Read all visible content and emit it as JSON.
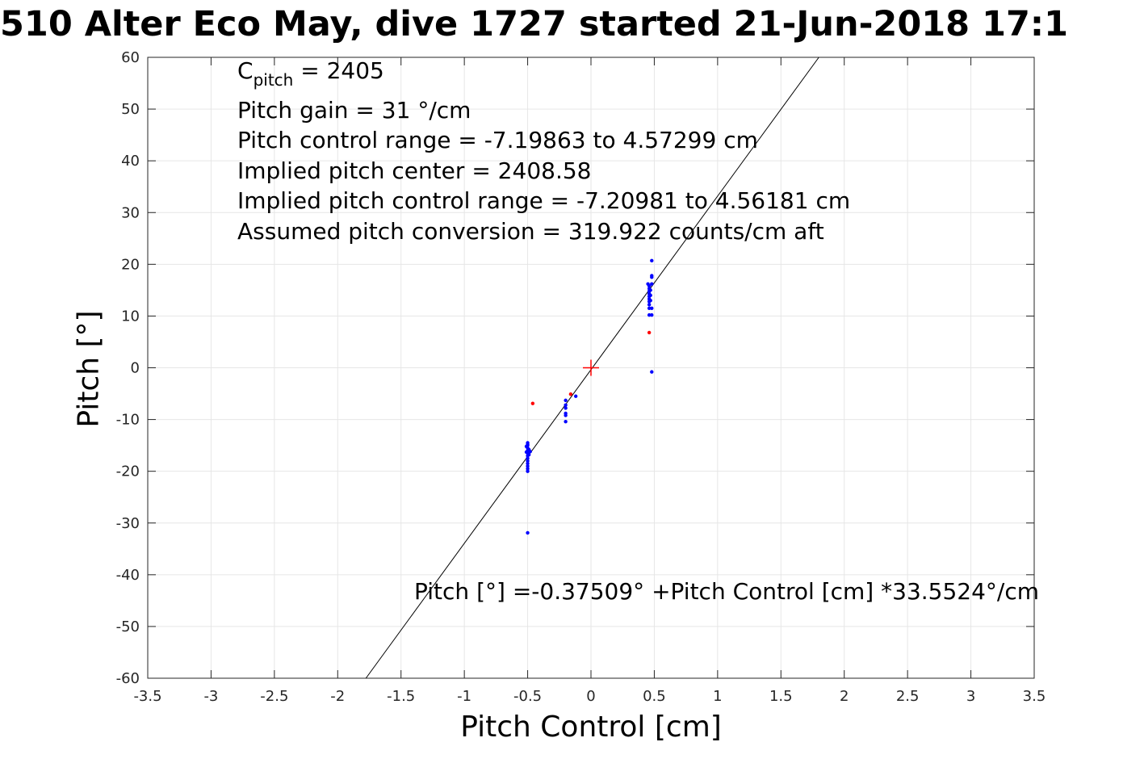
{
  "chart_data": {
    "type": "scatter",
    "title": "510 Alter Eco May, dive 1727 started 21-Jun-2018 17:1",
    "xlabel": "Pitch Control [cm]",
    "ylabel": "Pitch [°]",
    "xlim": [
      -3.5,
      3.5
    ],
    "ylim": [
      -60,
      60
    ],
    "x_ticks": [
      -3.5,
      -3,
      -2.5,
      -2,
      -1.5,
      -1,
      -0.5,
      0,
      0.5,
      1,
      1.5,
      2,
      2.5,
      3,
      3.5
    ],
    "x_tick_labels": [
      "-3.5",
      "-3",
      "-2.5",
      "-2",
      "-1.5",
      "-1",
      "-0.5",
      "0",
      "0.5",
      "1",
      "1.5",
      "2",
      "2.5",
      "3",
      "3.5"
    ],
    "y_ticks": [
      -60,
      -50,
      -40,
      -30,
      -20,
      -10,
      0,
      10,
      20,
      30,
      40,
      50,
      60
    ],
    "y_tick_labels": [
      "-60",
      "-50",
      "-40",
      "-30",
      "-20",
      "-10",
      "0",
      "10",
      "20",
      "30",
      "40",
      "50",
      "60"
    ],
    "grid": true,
    "annotations": {
      "cpitch_prefix": "C",
      "cpitch_sub": "pitch",
      "cpitch_rest": " = 2405",
      "line2": "Pitch gain = 31 °/cm",
      "line3": "Pitch control range = -7.19863 to 4.57299 cm",
      "line4": "Implied pitch center = 2408.58",
      "line5": "Implied pitch control range = -7.20981 to 4.56181 cm",
      "line6": "Assumed pitch conversion = 319.922 counts/cm aft",
      "equation": "Pitch [°] =-0.37509° +Pitch Control [cm] *33.5524°/cm"
    },
    "fit_line": {
      "intercept": -0.37509,
      "slope": 33.5524,
      "color": "#000000"
    },
    "center_marker": {
      "x": 0,
      "y": 0,
      "color": "#ff0000"
    },
    "series": [
      {
        "color": "#0000ff",
        "points": [
          [
            -0.5,
            -14.5
          ],
          [
            -0.5,
            -15
          ],
          [
            -0.5,
            -15.5
          ],
          [
            -0.5,
            -16
          ],
          [
            -0.5,
            -16.5
          ],
          [
            -0.5,
            -17
          ],
          [
            -0.5,
            -17.5
          ],
          [
            -0.5,
            -18
          ],
          [
            -0.5,
            -18.5
          ],
          [
            -0.5,
            -19
          ],
          [
            -0.5,
            -19.5
          ],
          [
            -0.5,
            -20
          ],
          [
            -0.51,
            -15.2
          ],
          [
            -0.51,
            -16.3
          ],
          [
            -0.49,
            -16.8
          ],
          [
            -0.49,
            -15.8
          ],
          [
            -0.5,
            -14.8
          ],
          [
            -0.48,
            -16.2
          ],
          [
            -0.5,
            -31.9
          ],
          [
            -0.2,
            -6.3
          ],
          [
            -0.2,
            -7.2
          ],
          [
            -0.2,
            -7.8
          ],
          [
            -0.2,
            -8.8
          ],
          [
            -0.2,
            -9.2
          ],
          [
            -0.2,
            -10.4
          ],
          [
            -0.12,
            -5.5
          ],
          [
            0.46,
            10.2
          ],
          [
            0.46,
            11.5
          ],
          [
            0.46,
            12.2
          ],
          [
            0.46,
            12.8
          ],
          [
            0.46,
            13.3
          ],
          [
            0.46,
            13.8
          ],
          [
            0.46,
            14.3
          ],
          [
            0.46,
            14.8
          ],
          [
            0.46,
            15.3
          ],
          [
            0.46,
            15.8
          ],
          [
            0.45,
            16.2
          ],
          [
            0.47,
            14.0
          ],
          [
            0.47,
            13.0
          ],
          [
            0.47,
            15.0
          ],
          [
            0.48,
            16.2
          ],
          [
            0.48,
            17.5
          ],
          [
            0.48,
            17.8
          ],
          [
            0.48,
            11.5
          ],
          [
            0.48,
            10.2
          ],
          [
            0.48,
            20.7
          ],
          [
            0.48,
            -0.8
          ]
        ]
      },
      {
        "color": "#ff0000",
        "points": [
          [
            -0.46,
            -6.9
          ],
          [
            -0.16,
            -5.1
          ],
          [
            0.46,
            6.8
          ]
        ]
      }
    ]
  }
}
